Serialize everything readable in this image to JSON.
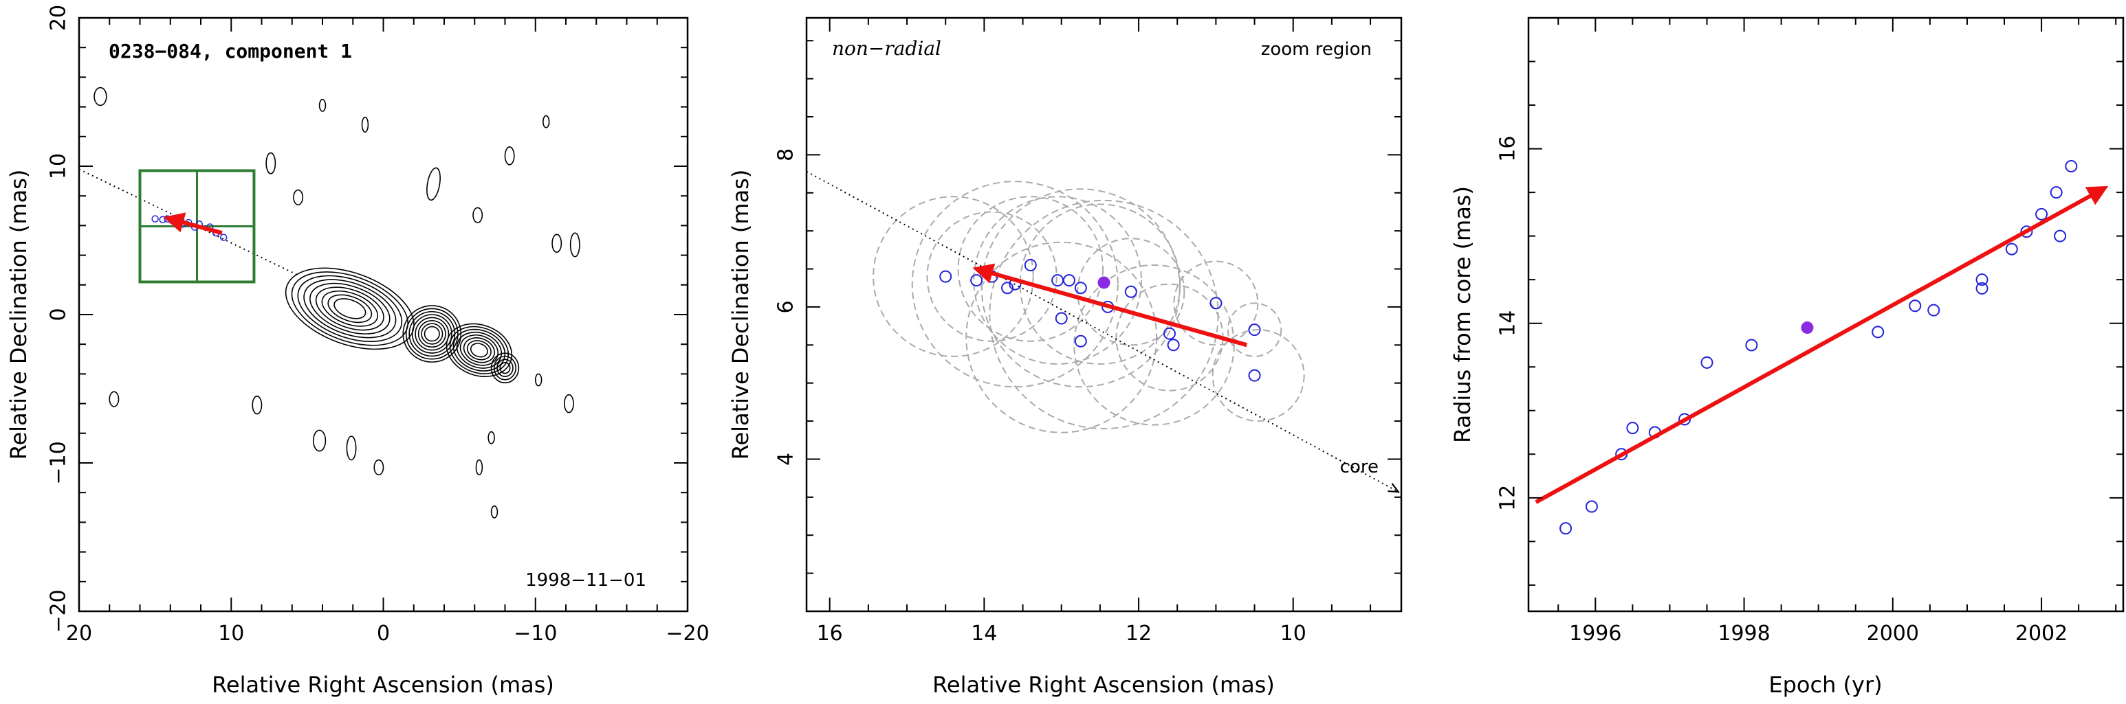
{
  "colors": {
    "arrow": "#ee1111",
    "open_point": "#2222dd",
    "filled_point": "#8a2be2",
    "zoom_box": "#2e7d32",
    "circle": "#aaaaaa",
    "contour": "#000000"
  },
  "chart_data": [
    {
      "type": "contour",
      "title": "0238−084, component 1",
      "xlabel": "Relative Right Ascension (mas)",
      "ylabel": "Relative Declination (mas)",
      "xlim": [
        20,
        -20
      ],
      "ylim": [
        -20,
        20
      ],
      "xticks": [
        20,
        10,
        0,
        -10,
        -20
      ],
      "yticks": [
        -20,
        -10,
        0,
        10,
        20
      ],
      "x_tick_labels": [
        "20",
        "10",
        "0",
        "−10",
        "−20"
      ],
      "y_tick_labels": [
        "−20",
        "−10",
        "0",
        "10",
        "20"
      ],
      "epoch_label": "1998−11−01",
      "jet_axis": {
        "from": [
          20,
          9.8
        ],
        "to": [
          5.5,
          2.6
        ]
      },
      "zoom_box": {
        "x": [
          8.5,
          16.0
        ],
        "y": [
          2.2,
          9.7
        ]
      },
      "points": [
        [
          15.0,
          6.45
        ],
        [
          14.5,
          6.4
        ],
        [
          13.9,
          6.35
        ],
        [
          13.4,
          6.5
        ],
        [
          12.8,
          6.2
        ],
        [
          12.1,
          6.1
        ],
        [
          11.4,
          5.9
        ],
        [
          11.0,
          5.5
        ],
        [
          10.5,
          5.2
        ],
        [
          12.4,
          5.9
        ],
        [
          13.2,
          6.1
        ],
        [
          14.2,
          6.45
        ]
      ],
      "motion_arrow": {
        "from": [
          10.6,
          5.5
        ],
        "to": [
          14.2,
          6.5
        ]
      },
      "contours": [
        {
          "x": 2.2,
          "y": 0.4,
          "rx": 4.4,
          "ry": 2.4,
          "angle": 20,
          "levels": 9
        },
        {
          "x": -3.2,
          "y": -1.3,
          "rx": 1.9,
          "ry": 1.9,
          "angle": 0,
          "levels": 8
        },
        {
          "x": -6.3,
          "y": -2.4,
          "rx": 2.2,
          "ry": 1.7,
          "angle": 20,
          "levels": 8
        },
        {
          "x": -8.0,
          "y": -3.6,
          "rx": 0.9,
          "ry": 1.0,
          "angle": 0,
          "levels": 4
        },
        {
          "x": 18.6,
          "y": 14.7,
          "rx": 0.4,
          "ry": 0.6,
          "angle": 0,
          "levels": 1
        },
        {
          "x": 7.4,
          "y": 10.2,
          "rx": 0.3,
          "ry": 0.7,
          "angle": 0,
          "levels": 1
        },
        {
          "x": 5.6,
          "y": 7.9,
          "rx": 0.3,
          "ry": 0.5,
          "angle": 0,
          "levels": 1
        },
        {
          "x": 4.0,
          "y": 14.1,
          "rx": 0.2,
          "ry": 0.4,
          "angle": 0,
          "levels": 1
        },
        {
          "x": 1.2,
          "y": 12.8,
          "rx": 0.2,
          "ry": 0.5,
          "angle": 0,
          "levels": 1
        },
        {
          "x": -3.3,
          "y": 8.8,
          "rx": 0.4,
          "ry": 1.1,
          "angle": 10,
          "levels": 1
        },
        {
          "x": -6.2,
          "y": 6.7,
          "rx": 0.3,
          "ry": 0.5,
          "angle": 0,
          "levels": 1
        },
        {
          "x": -8.3,
          "y": 10.7,
          "rx": 0.3,
          "ry": 0.6,
          "angle": 0,
          "levels": 1
        },
        {
          "x": -11.4,
          "y": 4.8,
          "rx": 0.3,
          "ry": 0.6,
          "angle": 0,
          "levels": 1
        },
        {
          "x": -12.6,
          "y": 4.7,
          "rx": 0.3,
          "ry": 0.8,
          "angle": 0,
          "levels": 1
        },
        {
          "x": -10.7,
          "y": 13.0,
          "rx": 0.2,
          "ry": 0.4,
          "angle": 0,
          "levels": 1
        },
        {
          "x": 17.7,
          "y": -5.7,
          "rx": 0.3,
          "ry": 0.5,
          "angle": 0,
          "levels": 1
        },
        {
          "x": 8.3,
          "y": -6.1,
          "rx": 0.3,
          "ry": 0.6,
          "angle": 0,
          "levels": 1
        },
        {
          "x": 4.2,
          "y": -8.5,
          "rx": 0.4,
          "ry": 0.7,
          "angle": 0,
          "levels": 1
        },
        {
          "x": 2.1,
          "y": -9.0,
          "rx": 0.3,
          "ry": 0.8,
          "angle": 0,
          "levels": 1
        },
        {
          "x": 0.3,
          "y": -10.3,
          "rx": 0.3,
          "ry": 0.5,
          "angle": 0,
          "levels": 1
        },
        {
          "x": -6.3,
          "y": -10.3,
          "rx": 0.2,
          "ry": 0.5,
          "angle": 0,
          "levels": 1
        },
        {
          "x": -7.1,
          "y": -8.3,
          "rx": 0.2,
          "ry": 0.4,
          "angle": 0,
          "levels": 1
        },
        {
          "x": -12.2,
          "y": -6.0,
          "rx": 0.3,
          "ry": 0.6,
          "angle": 0,
          "levels": 1
        },
        {
          "x": -10.2,
          "y": -4.4,
          "rx": 0.2,
          "ry": 0.4,
          "angle": 0,
          "levels": 1
        },
        {
          "x": -7.3,
          "y": -13.3,
          "rx": 0.2,
          "ry": 0.4,
          "angle": 0,
          "levels": 1
        }
      ]
    },
    {
      "type": "scatter",
      "title": "non−radial",
      "annotation": "zoom region",
      "core_label": "core",
      "xlabel": "Relative Right Ascension (mas)",
      "ylabel": "Relative Declination (mas)",
      "xlim": [
        16.3,
        8.6
      ],
      "ylim": [
        2.0,
        9.8
      ],
      "xticks": [
        16,
        14,
        12,
        10
      ],
      "yticks": [
        4,
        6,
        8
      ],
      "jet_axis": {
        "from": [
          16.3,
          7.78
        ],
        "to": [
          8.6,
          3.55
        ]
      },
      "points": [
        [
          14.5,
          6.4
        ],
        [
          14.1,
          6.35
        ],
        [
          13.9,
          6.4
        ],
        [
          13.7,
          6.25
        ],
        [
          13.6,
          6.3
        ],
        [
          13.4,
          6.55
        ],
        [
          13.05,
          6.35
        ],
        [
          13.0,
          5.85
        ],
        [
          12.9,
          6.35
        ],
        [
          12.75,
          6.25
        ],
        [
          12.75,
          5.55
        ],
        [
          12.4,
          6.0
        ],
        [
          12.1,
          6.2
        ],
        [
          11.6,
          5.65
        ],
        [
          11.55,
          5.5
        ],
        [
          11.0,
          6.05
        ],
        [
          10.5,
          5.7
        ],
        [
          10.5,
          5.1
        ]
      ],
      "highlight_point": [
        12.45,
        6.32
      ],
      "circles": [
        [
          14.4,
          6.4,
          1.05
        ],
        [
          13.9,
          6.4,
          0.85
        ],
        [
          13.6,
          6.3,
          1.35
        ],
        [
          13.4,
          6.5,
          0.95
        ],
        [
          13.05,
          6.35,
          1.1
        ],
        [
          12.75,
          6.25,
          1.3
        ],
        [
          12.5,
          6.3,
          1.05
        ],
        [
          12.45,
          5.9,
          1.5
        ],
        [
          12.1,
          6.2,
          0.7
        ],
        [
          11.6,
          5.6,
          0.7
        ],
        [
          11.0,
          6.05,
          0.55
        ],
        [
          10.5,
          5.7,
          0.35
        ],
        [
          10.45,
          5.1,
          0.6
        ],
        [
          11.8,
          5.5,
          1.05
        ],
        [
          13.0,
          5.6,
          1.25
        ]
      ],
      "motion_arrow": {
        "from": [
          10.6,
          5.5
        ],
        "to": [
          14.1,
          6.5
        ]
      }
    },
    {
      "type": "scatter",
      "xlabel": "Epoch (yr)",
      "ylabel": "Radius from core (mas)",
      "xlim": [
        1995.1,
        2003.1
      ],
      "ylim": [
        10.7,
        17.5
      ],
      "xticks": [
        1996,
        1998,
        2000,
        2002
      ],
      "yticks": [
        12,
        14,
        16
      ],
      "points": [
        [
          1995.6,
          11.65
        ],
        [
          1995.95,
          11.9
        ],
        [
          1996.35,
          12.5
        ],
        [
          1996.5,
          12.8
        ],
        [
          1996.8,
          12.75
        ],
        [
          1997.2,
          12.9
        ],
        [
          1997.5,
          13.55
        ],
        [
          1998.1,
          13.75
        ],
        [
          1999.8,
          13.9
        ],
        [
          2000.3,
          14.2
        ],
        [
          2000.55,
          14.15
        ],
        [
          2001.2,
          14.4
        ],
        [
          2001.2,
          14.5
        ],
        [
          2001.6,
          14.85
        ],
        [
          2001.8,
          15.05
        ],
        [
          2002.0,
          15.25
        ],
        [
          2002.2,
          15.5
        ],
        [
          2002.25,
          15.0
        ],
        [
          2002.4,
          15.8
        ]
      ],
      "highlight_point": [
        1998.85,
        13.95
      ],
      "fit_arrow": {
        "from": [
          1995.2,
          11.95
        ],
        "to": [
          2002.85,
          15.55
        ]
      }
    }
  ]
}
